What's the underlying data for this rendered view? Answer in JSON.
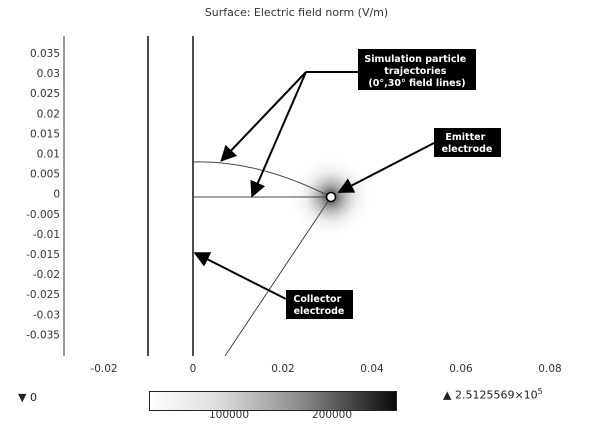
{
  "plot": {
    "title": "Surface: Electric field norm (V/m)",
    "x_ticks": [
      "-0.02",
      "0",
      "0.02",
      "0.04",
      "0.06",
      "0.08"
    ],
    "y_ticks": [
      "0.035",
      "0.03",
      "0.025",
      "0.02",
      "0.015",
      "0.01",
      "0.005",
      "0",
      "-0.005",
      "-0.01",
      "-0.015",
      "-0.02",
      "-0.025",
      "-0.03",
      "-0.035"
    ]
  },
  "callouts": {
    "trajectories": [
      "Simulation particle",
      "trajectories",
      "(0°,30° field lines)"
    ],
    "emitter": [
      "Emitter",
      "electrode"
    ],
    "collector": [
      "Collector",
      "electrode"
    ]
  },
  "colorbar": {
    "min_icon": "down-triangle",
    "min_label": "▼ 0",
    "max_icon": "up-triangle",
    "max_prefix": "▲ 2.5125569×10",
    "max_exp": "5",
    "ticks": [
      "100000",
      "200000"
    ]
  }
}
